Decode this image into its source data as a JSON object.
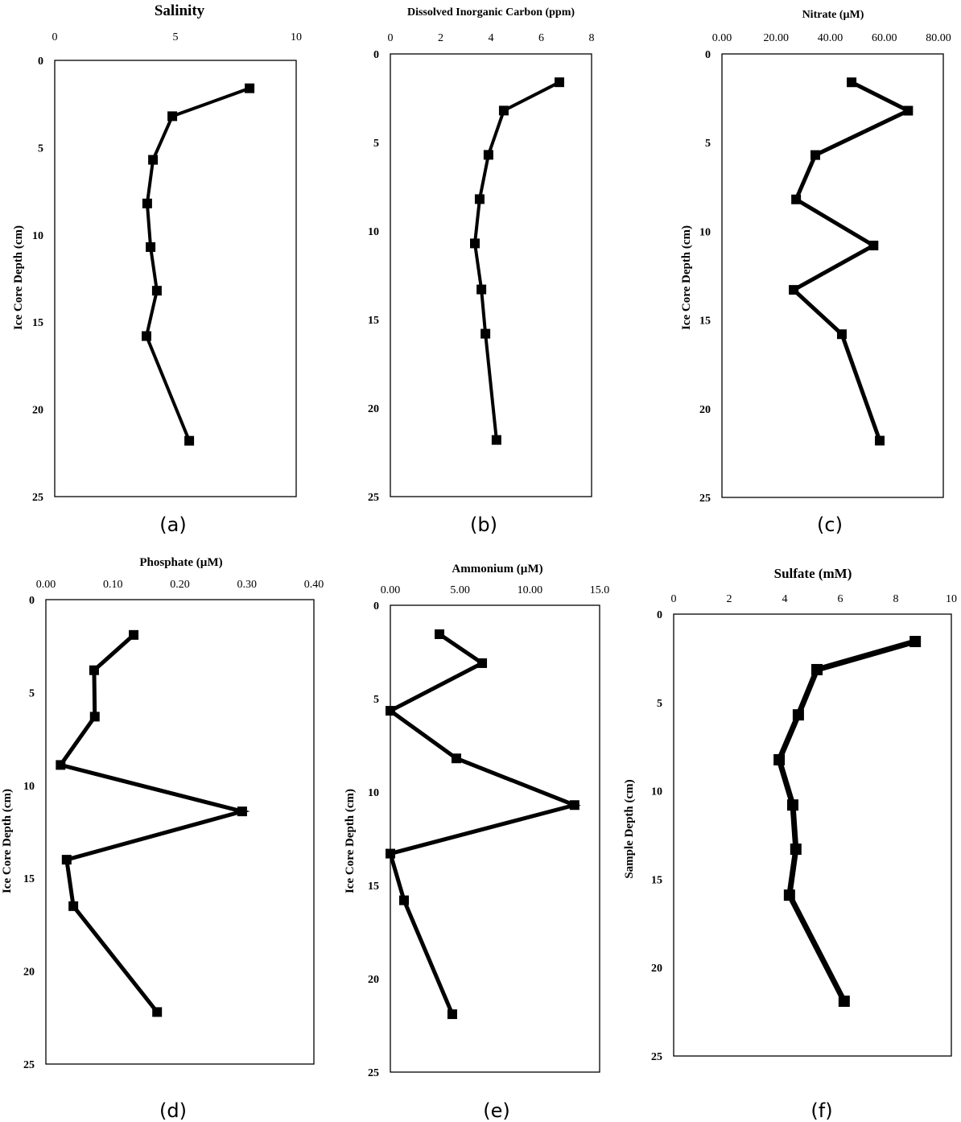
{
  "chart_data": [
    {
      "id": "a",
      "type": "line",
      "panel_label": "(a)",
      "title": "Salinity",
      "xlabel": "",
      "ylabel": "Ice Core Depth (cm)",
      "xlim": [
        0,
        10
      ],
      "ylim": [
        0,
        25
      ],
      "y_inverted": true,
      "x_axis_position": "top",
      "xticks": [
        "0",
        "5",
        "10"
      ],
      "yticks": [
        "0",
        "5",
        "10",
        "15",
        "20",
        "25"
      ],
      "series": [
        {
          "name": "Salinity",
          "x": [
            8.07,
            4.87,
            4.07,
            3.83,
            3.97,
            4.23,
            3.8,
            5.57
          ],
          "y": [
            1.6,
            3.2,
            5.7,
            8.2,
            10.7,
            13.2,
            15.8,
            21.8
          ]
        }
      ]
    },
    {
      "id": "b",
      "type": "line",
      "panel_label": "(b)",
      "title": "Dissolved Inorganic Carbon (ppm)",
      "xlabel": "",
      "ylabel": "",
      "xlim": [
        0,
        8
      ],
      "ylim": [
        0,
        25
      ],
      "y_inverted": true,
      "x_axis_position": "top",
      "xticks": [
        "0",
        "2",
        "4",
        "6",
        "8"
      ],
      "yticks": [
        "0",
        "5",
        "10",
        "15",
        "20",
        "25"
      ],
      "series": [
        {
          "name": "DIC",
          "x": [
            6.72,
            4.51,
            3.9,
            3.55,
            3.36,
            3.62,
            3.78,
            4.22
          ],
          "y": [
            1.6,
            3.2,
            5.7,
            8.2,
            10.7,
            13.3,
            15.8,
            21.8
          ]
        }
      ]
    },
    {
      "id": "c",
      "type": "line",
      "panel_label": "(c)",
      "title": "Nitrate (µM)",
      "xlabel": "",
      "ylabel": "Ice Core Depth (cm)",
      "xlim": [
        0,
        80
      ],
      "ylim": [
        0,
        25
      ],
      "y_inverted": true,
      "x_axis_position": "top",
      "xticks": [
        "0.00",
        "20.00",
        "40.00",
        "60.00",
        "80.00"
      ],
      "yticks": [
        "0",
        "5",
        "10",
        "15",
        "20",
        "25"
      ],
      "series": [
        {
          "name": "Nitrate",
          "x": [
            47.9,
            68.8,
            34.5,
            27.4,
            56.0,
            26.5,
            44.3,
            58.3
          ],
          "y": [
            1.6,
            3.2,
            5.7,
            8.2,
            10.8,
            13.3,
            15.8,
            21.8
          ]
        }
      ]
    },
    {
      "id": "d",
      "type": "line",
      "panel_label": "(d)",
      "title": "Phosphate (µM)",
      "xlabel": "",
      "ylabel": "Ice Core Depth (cm)",
      "xlim": [
        0,
        0.4
      ],
      "ylim": [
        0,
        25
      ],
      "y_inverted": true,
      "x_axis_position": "top",
      "xticks": [
        "0.00",
        "0.10",
        "0.20",
        "0.30",
        "0.40"
      ],
      "yticks": [
        "0",
        "5",
        "10",
        "15",
        "20",
        "25"
      ],
      "series": [
        {
          "name": "Phosphate",
          "x": [
            0.131,
            0.072,
            0.073,
            0.022,
            0.293,
            0.031,
            0.041,
            0.166
          ],
          "y": [
            1.9,
            3.8,
            6.3,
            8.9,
            11.4,
            14.0,
            16.5,
            22.2
          ]
        }
      ]
    },
    {
      "id": "e",
      "type": "line",
      "panel_label": "(e)",
      "title": "Ammonium (µM)",
      "xlabel": "",
      "ylabel": "Ice Core Depth (cm)",
      "xlim": [
        0,
        15
      ],
      "ylim": [
        0,
        25
      ],
      "y_inverted": true,
      "x_axis_position": "top",
      "xticks": [
        "0.00",
        "5.00",
        "10.00",
        "15.0"
      ],
      "yticks": [
        "0",
        "5",
        "10",
        "15",
        "20",
        "25"
      ],
      "series": [
        {
          "name": "Ammonium",
          "x": [
            3.52,
            6.58,
            0.0,
            4.73,
            13.2,
            0.0,
            0.98,
            4.44
          ],
          "y": [
            1.55,
            3.1,
            5.65,
            8.2,
            10.7,
            13.3,
            15.8,
            21.9
          ]
        }
      ]
    },
    {
      "id": "f",
      "type": "line",
      "panel_label": "(f)",
      "title": "Sulfate (mM)",
      "xlabel": "",
      "ylabel": "Sample Depth (cm)",
      "xlim": [
        0,
        10
      ],
      "ylim": [
        0,
        25
      ],
      "y_inverted": true,
      "x_axis_position": "top",
      "xticks": [
        "0",
        "2",
        "4",
        "6",
        "8",
        "10"
      ],
      "yticks": [
        "0",
        "5",
        "10",
        "15",
        "20",
        "25"
      ],
      "series": [
        {
          "name": "Sulfate",
          "x": [
            8.7,
            5.16,
            4.49,
            3.8,
            4.29,
            4.4,
            4.17,
            6.14
          ],
          "y": [
            1.55,
            3.14,
            5.7,
            8.24,
            10.8,
            13.3,
            15.9,
            21.9
          ]
        }
      ]
    }
  ],
  "colors": {
    "line": "#000000",
    "frame": "#000000",
    "background": "#ffffff"
  }
}
